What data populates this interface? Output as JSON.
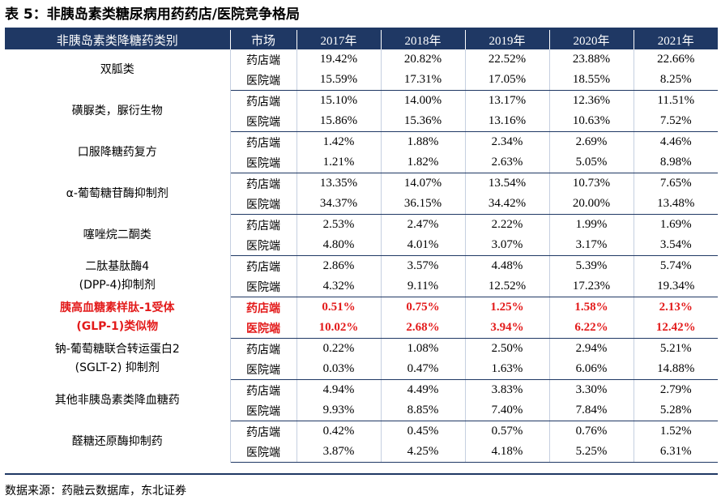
{
  "title": "表 5：非胰岛素类糖尿病用药药店/医院竞争格局",
  "headers": [
    "非胰岛素类降糖药类别",
    "市场",
    "2017年",
    "2018年",
    "2019年",
    "2020年",
    "2021年"
  ],
  "groups": [
    {
      "category": [
        "双胍类"
      ],
      "highlight": false,
      "rows": [
        {
          "market": "药店端",
          "values": [
            "19.42%",
            "20.82%",
            "22.52%",
            "23.88%",
            "22.66%"
          ]
        },
        {
          "market": "医院端",
          "values": [
            "15.59%",
            "17.31%",
            "17.05%",
            "18.55%",
            "8.25%"
          ]
        }
      ]
    },
    {
      "category": [
        "磺脲类，脲衍生物"
      ],
      "highlight": false,
      "rows": [
        {
          "market": "药店端",
          "values": [
            "15.10%",
            "14.00%",
            "13.17%",
            "12.36%",
            "11.51%"
          ]
        },
        {
          "market": "医院端",
          "values": [
            "15.86%",
            "15.36%",
            "13.16%",
            "10.63%",
            "7.52%"
          ]
        }
      ]
    },
    {
      "category": [
        "口服降糖药复方"
      ],
      "highlight": false,
      "rows": [
        {
          "market": "药店端",
          "values": [
            "1.42%",
            "1.88%",
            "2.34%",
            "2.69%",
            "4.46%"
          ]
        },
        {
          "market": "医院端",
          "values": [
            "1.21%",
            "1.82%",
            "2.63%",
            "5.05%",
            "8.98%"
          ]
        }
      ]
    },
    {
      "category": [
        "α-葡萄糖苷酶抑制剂"
      ],
      "highlight": false,
      "rows": [
        {
          "market": "药店端",
          "values": [
            "13.35%",
            "14.07%",
            "13.54%",
            "10.73%",
            "7.65%"
          ]
        },
        {
          "market": "医院端",
          "values": [
            "34.37%",
            "36.15%",
            "34.42%",
            "20.00%",
            "13.48%"
          ]
        }
      ]
    },
    {
      "category": [
        "噻唑烷二酮类"
      ],
      "highlight": false,
      "rows": [
        {
          "market": "药店端",
          "values": [
            "2.53%",
            "2.47%",
            "2.22%",
            "1.99%",
            "1.69%"
          ]
        },
        {
          "market": "医院端",
          "values": [
            "4.80%",
            "4.01%",
            "3.07%",
            "3.17%",
            "3.54%"
          ]
        }
      ]
    },
    {
      "category": [
        "二肽基肽酶4",
        "(DPP-4)抑制剂"
      ],
      "highlight": false,
      "rows": [
        {
          "market": "药店端",
          "values": [
            "2.86%",
            "3.57%",
            "4.48%",
            "5.39%",
            "5.74%"
          ]
        },
        {
          "market": "医院端",
          "values": [
            "4.32%",
            "9.11%",
            "12.52%",
            "17.23%",
            "19.34%"
          ]
        }
      ]
    },
    {
      "category": [
        "胰高血糖素样肽-1受体",
        "(GLP-1)类似物"
      ],
      "highlight": true,
      "rows": [
        {
          "market": "药店端",
          "values": [
            "0.51%",
            "0.75%",
            "1.25%",
            "1.58%",
            "2.13%"
          ]
        },
        {
          "market": "医院端",
          "values": [
            "10.02%",
            "2.68%",
            "3.94%",
            "6.22%",
            "12.42%"
          ]
        }
      ]
    },
    {
      "category": [
        "钠-葡萄糖联合转运蛋白2",
        "(SGLT-2) 抑制剂"
      ],
      "highlight": false,
      "rows": [
        {
          "market": "药店端",
          "values": [
            "0.22%",
            "1.08%",
            "2.50%",
            "2.94%",
            "5.21%"
          ]
        },
        {
          "market": "医院端",
          "values": [
            "0.03%",
            "0.47%",
            "1.63%",
            "6.06%",
            "14.88%"
          ]
        }
      ]
    },
    {
      "category": [
        "其他非胰岛素类降血糖药"
      ],
      "highlight": false,
      "rows": [
        {
          "market": "药店端",
          "values": [
            "4.94%",
            "4.49%",
            "3.83%",
            "3.30%",
            "2.79%"
          ]
        },
        {
          "market": "医院端",
          "values": [
            "9.93%",
            "8.85%",
            "7.40%",
            "7.84%",
            "5.28%"
          ]
        }
      ]
    },
    {
      "category": [
        "醛糖还原酶抑制药"
      ],
      "highlight": false,
      "rows": [
        {
          "market": "药店端",
          "values": [
            "0.42%",
            "0.45%",
            "0.57%",
            "0.76%",
            "1.52%"
          ]
        },
        {
          "market": "医院端",
          "values": [
            "3.87%",
            "4.25%",
            "4.18%",
            "5.25%",
            "6.31%"
          ]
        }
      ]
    }
  ],
  "source": "数据来源：药融云数据库，东北证券",
  "colors": {
    "header_bg": "#1f3864",
    "highlight": "#e31b1b"
  }
}
